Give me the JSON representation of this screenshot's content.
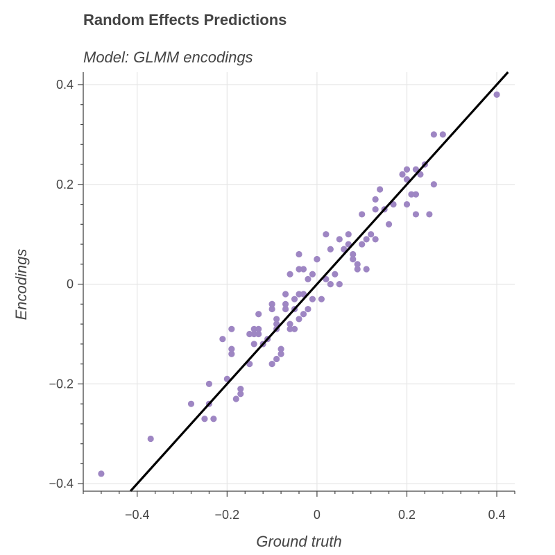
{
  "chart_data": {
    "type": "scatter",
    "title": "Random Effects Predictions",
    "subtitle": "Model: GLMM encodings",
    "xlabel": "Ground truth",
    "ylabel": "Encodings",
    "xlim": [
      -0.52,
      0.44
    ],
    "ylim": [
      -0.415,
      0.425
    ],
    "x_ticks": [
      -0.4,
      -0.2,
      0,
      0.2,
      0.4
    ],
    "x_tick_labels": [
      "−0.4",
      "−0.2",
      "0",
      "0.2",
      "0.4"
    ],
    "y_ticks": [
      -0.4,
      -0.2,
      0,
      0.2,
      0.4
    ],
    "y_tick_labels": [
      "−0.4",
      "−0.2",
      "0",
      "0.2",
      "0.4"
    ],
    "grid": true,
    "colors": {
      "points": "#9e86c3",
      "line": "#000000",
      "grid": "#e6e6e6",
      "axis": "#444444"
    },
    "fit_line": {
      "x": [
        -0.45,
        0.5
      ],
      "y": [
        -0.45,
        0.5
      ]
    },
    "points": {
      "x": [
        -0.48,
        -0.37,
        -0.28,
        -0.25,
        -0.24,
        -0.23,
        -0.24,
        -0.21,
        -0.2,
        -0.19,
        -0.19,
        -0.19,
        -0.18,
        -0.17,
        -0.17,
        -0.15,
        -0.15,
        -0.14,
        -0.14,
        -0.14,
        -0.13,
        -0.13,
        -0.12,
        -0.11,
        -0.1,
        -0.1,
        -0.1,
        -0.09,
        -0.09,
        -0.09,
        -0.09,
        -0.08,
        -0.08,
        -0.07,
        -0.07,
        -0.07,
        -0.06,
        -0.06,
        -0.06,
        -0.05,
        -0.05,
        -0.05,
        -0.04,
        -0.04,
        -0.04,
        -0.04,
        -0.03,
        -0.03,
        -0.03,
        -0.03,
        -0.02,
        -0.02,
        -0.01,
        -0.01,
        0.0,
        0.01,
        0.02,
        0.02,
        0.03,
        0.04,
        0.05,
        0.05,
        0.06,
        0.07,
        0.07,
        0.08,
        0.08,
        0.09,
        0.09,
        0.1,
        0.1,
        0.11,
        0.11,
        0.12,
        0.13,
        0.13,
        0.13,
        0.14,
        0.15,
        0.16,
        0.17,
        0.19,
        0.2,
        0.2,
        0.2,
        0.21,
        0.22,
        0.22,
        0.22,
        0.23,
        0.24,
        0.25,
        0.26,
        0.26,
        0.28,
        0.4,
        -0.13,
        0.0,
        -0.1,
        0.06,
        0.03
      ],
      "y": [
        -0.38,
        -0.31,
        -0.24,
        -0.27,
        -0.24,
        -0.27,
        -0.2,
        -0.11,
        -0.19,
        -0.09,
        -0.13,
        -0.14,
        -0.23,
        -0.21,
        -0.22,
        -0.16,
        -0.1,
        -0.1,
        -0.09,
        -0.12,
        -0.1,
        -0.06,
        -0.12,
        -0.11,
        -0.16,
        -0.05,
        -0.04,
        -0.07,
        -0.09,
        -0.15,
        -0.08,
        -0.14,
        -0.13,
        -0.02,
        -0.04,
        -0.05,
        -0.09,
        -0.08,
        0.02,
        -0.03,
        -0.05,
        -0.09,
        -0.07,
        -0.02,
        0.03,
        0.06,
        -0.02,
        -0.06,
        0.03,
        -0.02,
        -0.05,
        0.01,
        -0.03,
        0.02,
        0.05,
        -0.03,
        0.01,
        0.1,
        0.07,
        0.02,
        0.09,
        0.0,
        0.07,
        0.1,
        0.08,
        0.05,
        0.06,
        0.04,
        0.03,
        0.08,
        0.14,
        0.09,
        0.03,
        0.1,
        0.09,
        0.17,
        0.15,
        0.19,
        0.15,
        0.12,
        0.16,
        0.22,
        0.16,
        0.23,
        0.21,
        0.18,
        0.23,
        0.14,
        0.18,
        0.22,
        0.24,
        0.14,
        0.2,
        0.3,
        0.3,
        0.38,
        -0.09,
        0.05,
        -0.04,
        0.07,
        0.0
      ]
    }
  }
}
